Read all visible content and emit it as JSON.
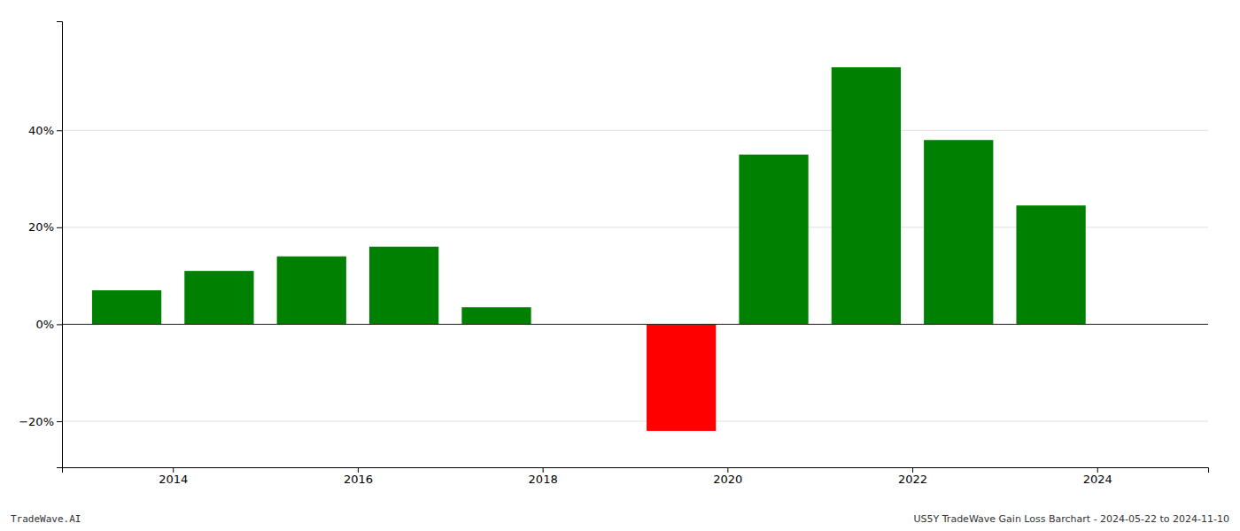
{
  "chart_data": {
    "type": "bar",
    "x": [
      2013.5,
      2014.5,
      2015.5,
      2016.5,
      2017.5,
      2019.5,
      2020.5,
      2021.5,
      2022.5,
      2023.5
    ],
    "values": [
      0.07,
      0.11,
      0.14,
      0.16,
      0.035,
      -0.22,
      0.35,
      0.53,
      0.38,
      0.245
    ],
    "colors": [
      "#008000",
      "#008000",
      "#008000",
      "#008000",
      "#008000",
      "#ff0000",
      "#008000",
      "#008000",
      "#008000",
      "#008000"
    ],
    "xlim": [
      2012.8,
      2025.2
    ],
    "xticks": [
      2014,
      2016,
      2018,
      2020,
      2022,
      2024
    ],
    "ylim": [
      -0.295,
      0.625
    ],
    "yticks": [
      {
        "value": -0.2,
        "label": "−20%"
      },
      {
        "value": 0.0,
        "label": "0%"
      },
      {
        "value": 0.2,
        "label": "20%"
      },
      {
        "value": 0.4,
        "label": "40%"
      }
    ],
    "grid": true,
    "annotations": [
      "TradeWave.AI",
      "US5Y TradeWave Gain Loss Barchart - 2024-05-22 to 2024-11-10"
    ]
  }
}
